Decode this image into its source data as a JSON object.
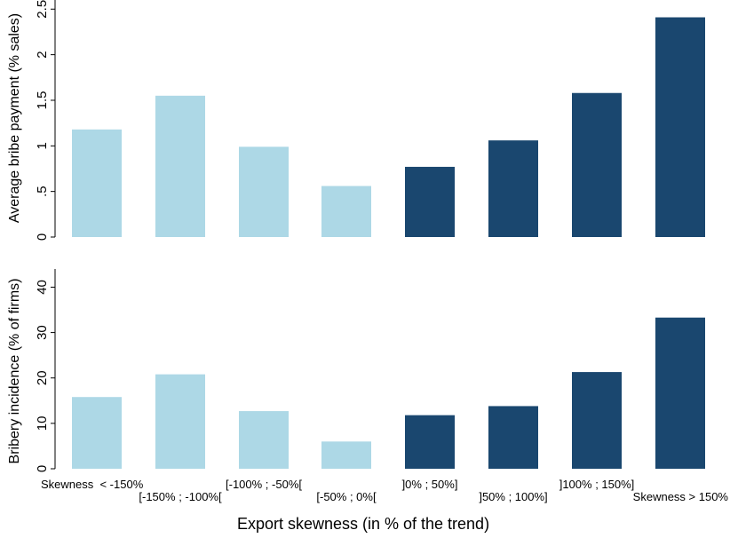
{
  "chart_data": [
    {
      "type": "bar",
      "title": "",
      "xlabel": "",
      "ylabel": "Average bribe payment (% sales)",
      "ylim": [
        0,
        2.6
      ],
      "yticks": [
        0,
        0.5,
        1,
        1.5,
        2,
        2.5
      ],
      "ytick_labels": [
        "0",
        ".5",
        "1",
        "1.5",
        "2",
        "2.5"
      ],
      "grid": false,
      "categories": [
        "Skewness  < -150%",
        "[-150% ; -100%[",
        "[-100% ; -50%[",
        "[-50% ; 0%[",
        "]0% ; 50%]",
        "]50% ; 100%]",
        "]100% ; 150%]",
        "Skewness > 150%"
      ],
      "values": [
        1.18,
        1.55,
        0.99,
        0.56,
        0.77,
        1.06,
        1.58,
        2.41
      ],
      "bar_colors": [
        "#add8e6",
        "#add8e6",
        "#add8e6",
        "#add8e6",
        "#1a476f",
        "#1a476f",
        "#1a476f",
        "#1a476f"
      ]
    },
    {
      "type": "bar",
      "title": "",
      "xlabel": "Export skewness (in % of the trend)",
      "ylabel": "Bribery incidence (% of firms)",
      "ylim": [
        0,
        44
      ],
      "yticks": [
        0,
        10,
        20,
        30,
        40
      ],
      "ytick_labels": [
        "0",
        "10",
        "20",
        "30",
        "40"
      ],
      "grid": false,
      "categories": [
        "Skewness  < -150%",
        "[-150% ; -100%[",
        "[-100% ; -50%[",
        "[-50% ; 0%[",
        "]0% ; 50%]",
        "]50% ; 100%]",
        "]100% ; 150%]",
        "Skewness > 150%"
      ],
      "values": [
        15.8,
        20.8,
        12.7,
        6.0,
        11.8,
        13.8,
        21.3,
        33.3
      ],
      "bar_colors": [
        "#add8e6",
        "#add8e6",
        "#add8e6",
        "#add8e6",
        "#1a476f",
        "#1a476f",
        "#1a476f",
        "#1a476f"
      ]
    }
  ]
}
